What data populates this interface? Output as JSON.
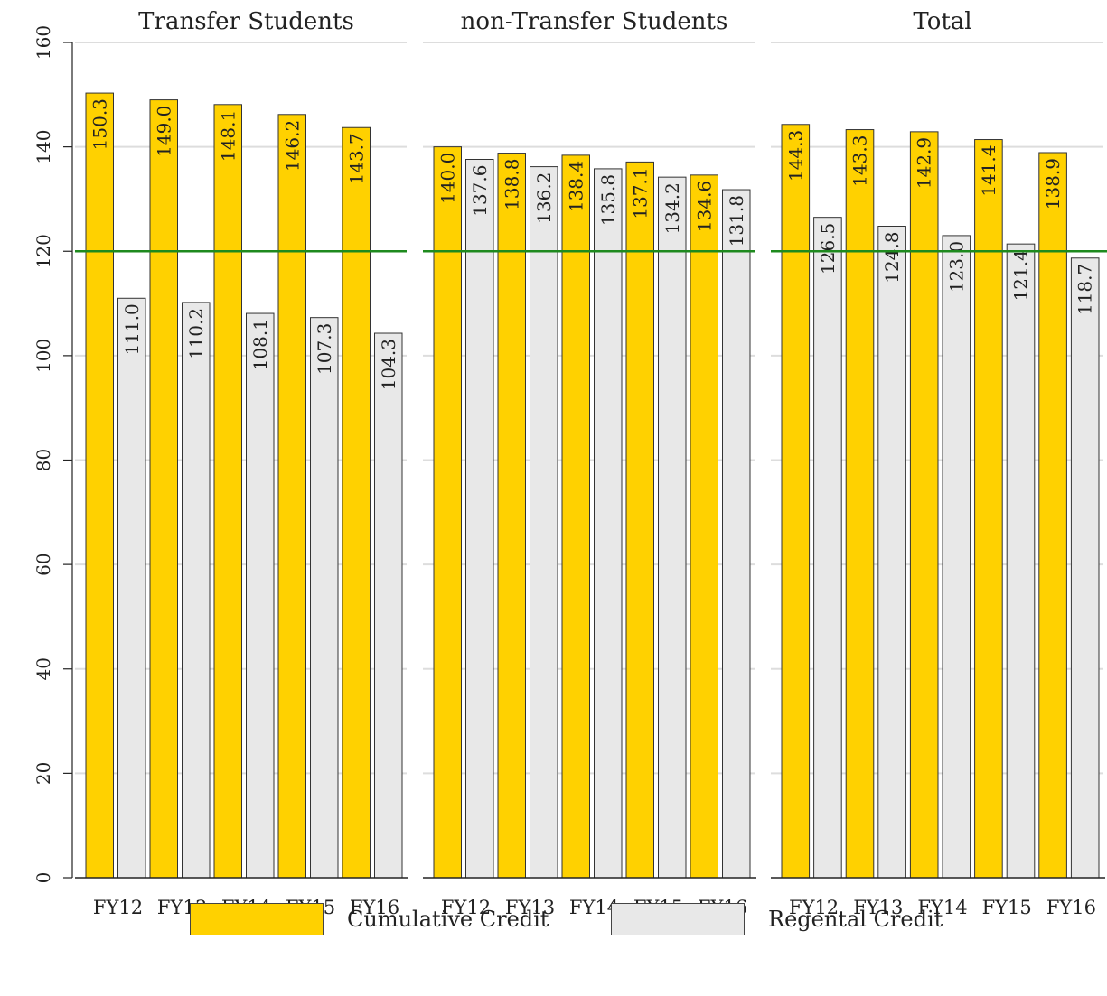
{
  "chart_data": {
    "type": "bar",
    "ylim": [
      0,
      160
    ],
    "yticks": [
      0,
      20,
      40,
      60,
      80,
      100,
      120,
      140,
      160
    ],
    "reference_line": 120,
    "colors": {
      "Cumulative Credit": "#FFD100",
      "Regental Credit": "#E8E8E8",
      "reference_line": "#1E8A1E",
      "gridline": "#DDDDDD"
    },
    "legend": [
      "Cumulative Credit",
      "Regental Credit"
    ],
    "panels": [
      {
        "title": "Transfer Students",
        "categories": [
          "FY12",
          "FY13",
          "FY14",
          "FY15",
          "FY16"
        ],
        "series": [
          {
            "name": "Cumulative Credit",
            "values": [
              150.3,
              149.0,
              148.1,
              146.2,
              143.7
            ]
          },
          {
            "name": "Regental Credit",
            "values": [
              111.0,
              110.2,
              108.1,
              107.3,
              104.3
            ]
          }
        ]
      },
      {
        "title": "non-Transfer Students",
        "categories": [
          "FY12",
          "FY13",
          "FY14",
          "FY15",
          "FY16"
        ],
        "series": [
          {
            "name": "Cumulative Credit",
            "values": [
              140.0,
              138.8,
              138.4,
              137.1,
              134.6
            ]
          },
          {
            "name": "Regental Credit",
            "values": [
              137.6,
              136.2,
              135.8,
              134.2,
              131.8
            ]
          }
        ]
      },
      {
        "title": "Total",
        "categories": [
          "FY12",
          "FY13",
          "FY14",
          "FY15",
          "FY16"
        ],
        "series": [
          {
            "name": "Cumulative Credit",
            "values": [
              144.3,
              143.3,
              142.9,
              141.4,
              138.9
            ]
          },
          {
            "name": "Regental Credit",
            "values": [
              126.5,
              124.8,
              123.0,
              121.4,
              118.7
            ]
          }
        ]
      }
    ]
  }
}
